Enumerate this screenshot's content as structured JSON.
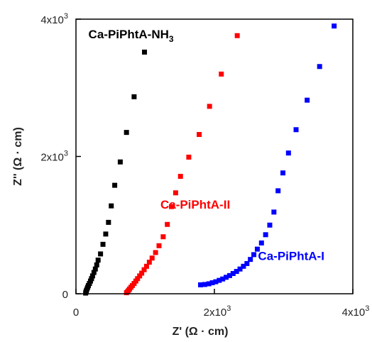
{
  "chart_data": {
    "type": "scatter",
    "xlabel": "Z' (Ω · cm)",
    "ylabel": "Z'' (Ω · cm)",
    "xlim": [
      0,
      4000
    ],
    "ylim": [
      0,
      4000
    ],
    "x_ticks": [
      {
        "value": 0,
        "label": "0",
        "exp": ""
      },
      {
        "value": 2000,
        "label": "2x10",
        "exp": "3"
      },
      {
        "value": 4000,
        "label": "4x10",
        "exp": "3"
      }
    ],
    "y_ticks": [
      {
        "value": 0,
        "label": "0",
        "exp": ""
      },
      {
        "value": 2000,
        "label": "2x10",
        "exp": "3"
      },
      {
        "value": 4000,
        "label": "4x10",
        "exp": "3"
      }
    ],
    "grid": false,
    "series": [
      {
        "name": "Ca-PiPhtA-NH",
        "name_sub": "3",
        "color": "#000000",
        "points": [
          [
            140,
            10
          ],
          [
            145,
            25
          ],
          [
            150,
            45
          ],
          [
            160,
            70
          ],
          [
            170,
            95
          ],
          [
            180,
            120
          ],
          [
            195,
            150
          ],
          [
            210,
            185
          ],
          [
            225,
            220
          ],
          [
            240,
            260
          ],
          [
            260,
            310
          ],
          [
            280,
            360
          ],
          [
            300,
            420
          ],
          [
            320,
            490
          ],
          [
            355,
            580
          ],
          [
            390,
            720
          ],
          [
            430,
            870
          ],
          [
            470,
            1040
          ],
          [
            510,
            1280
          ],
          [
            560,
            1580
          ],
          [
            640,
            1920
          ],
          [
            730,
            2350
          ],
          [
            840,
            2870
          ],
          [
            990,
            3520
          ]
        ]
      },
      {
        "name": "Ca-PiPhtA-II",
        "color": "#ff0000",
        "points": [
          [
            730,
            15
          ],
          [
            745,
            30
          ],
          [
            760,
            50
          ],
          [
            775,
            70
          ],
          [
            795,
            95
          ],
          [
            815,
            120
          ],
          [
            840,
            150
          ],
          [
            865,
            185
          ],
          [
            890,
            220
          ],
          [
            920,
            260
          ],
          [
            950,
            300
          ],
          [
            985,
            350
          ],
          [
            1020,
            400
          ],
          [
            1060,
            460
          ],
          [
            1100,
            520
          ],
          [
            1150,
            600
          ],
          [
            1200,
            700
          ],
          [
            1260,
            830
          ],
          [
            1320,
            1010
          ],
          [
            1380,
            1270
          ],
          [
            1440,
            1470
          ],
          [
            1510,
            1710
          ],
          [
            1630,
            1990
          ],
          [
            1780,
            2320
          ],
          [
            1930,
            2730
          ],
          [
            2100,
            3200
          ],
          [
            2330,
            3760
          ]
        ]
      },
      {
        "name": "Ca-PiPhtA-I",
        "color": "#0000ff",
        "points": [
          [
            1800,
            130
          ],
          [
            1860,
            135
          ],
          [
            1920,
            145
          ],
          [
            1970,
            160
          ],
          [
            2020,
            175
          ],
          [
            2070,
            195
          ],
          [
            2120,
            215
          ],
          [
            2170,
            240
          ],
          [
            2220,
            265
          ],
          [
            2270,
            295
          ],
          [
            2320,
            325
          ],
          [
            2370,
            360
          ],
          [
            2420,
            400
          ],
          [
            2470,
            440
          ],
          [
            2520,
            500
          ],
          [
            2570,
            570
          ],
          [
            2620,
            650
          ],
          [
            2680,
            740
          ],
          [
            2740,
            860
          ],
          [
            2800,
            1000
          ],
          [
            2860,
            1190
          ],
          [
            2920,
            1500
          ],
          [
            2990,
            1760
          ],
          [
            3070,
            2050
          ],
          [
            3180,
            2390
          ],
          [
            3340,
            2820
          ],
          [
            3520,
            3310
          ],
          [
            3730,
            3900
          ]
        ]
      }
    ],
    "annotations": [
      {
        "series": 0,
        "text": "Ca-PiPhtA-NH",
        "sub": "3",
        "x": 180,
        "y": 3720
      },
      {
        "series": 1,
        "text": "Ca-PiPhtA-II",
        "sub": "",
        "x": 1220,
        "y": 1240
      },
      {
        "series": 2,
        "text": "Ca-PiPhtA-I",
        "sub": "",
        "x": 2630,
        "y": 490
      }
    ]
  }
}
